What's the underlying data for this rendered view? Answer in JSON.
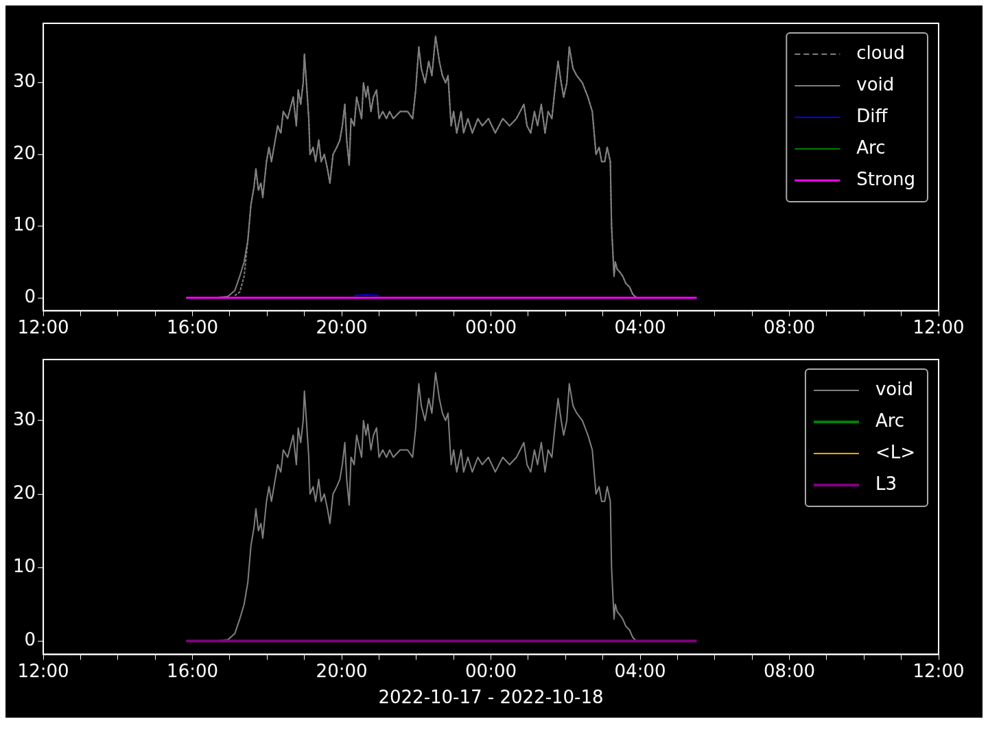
{
  "chart_data": [
    {
      "type": "line",
      "legend": "top right",
      "ylim": [
        -1.8,
        38.3
      ],
      "yticks": [
        0,
        10,
        20,
        30
      ],
      "xlim": [
        "2022-10-17T12:00",
        "2022-10-18T12:00"
      ],
      "xticks": [
        {
          "value": "2022-10-17T12:00",
          "label": "12:00"
        },
        {
          "value": "2022-10-17T13:00",
          "label": null
        },
        {
          "value": "2022-10-17T14:00",
          "label": null
        },
        {
          "value": "2022-10-17T15:00",
          "label": null
        },
        {
          "value": "2022-10-17T16:00",
          "label": "16:00"
        },
        {
          "value": "2022-10-17T17:00",
          "label": null
        },
        {
          "value": "2022-10-17T18:00",
          "label": null
        },
        {
          "value": "2022-10-17T19:00",
          "label": null
        },
        {
          "value": "2022-10-17T20:00",
          "label": "20:00"
        },
        {
          "value": "2022-10-17T21:00",
          "label": null
        },
        {
          "value": "2022-10-17T22:00",
          "label": null
        },
        {
          "value": "2022-10-17T23:00",
          "label": null
        },
        {
          "value": "2022-10-18T00:00",
          "label": "00:00"
        },
        {
          "value": "2022-10-18T01:00",
          "label": null
        },
        {
          "value": "2022-10-18T02:00",
          "label": null
        },
        {
          "value": "2022-10-18T03:00",
          "label": null
        },
        {
          "value": "2022-10-18T04:00",
          "label": "04:00"
        },
        {
          "value": "2022-10-18T05:00",
          "label": null
        },
        {
          "value": "2022-10-18T06:00",
          "label": null
        },
        {
          "value": "2022-10-18T07:00",
          "label": null
        },
        {
          "value": "2022-10-18T08:00",
          "label": "08:00"
        },
        {
          "value": "2022-10-18T09:00",
          "label": null
        },
        {
          "value": "2022-10-18T10:00",
          "label": null
        },
        {
          "value": "2022-10-18T11:00",
          "label": null
        },
        {
          "value": "2022-10-18T12:00",
          "label": "12:00"
        }
      ],
      "x": [
        "2022-10-17T15:50",
        "2022-10-17T16:40",
        "2022-10-17T16:57",
        "2022-10-17T17:08",
        "2022-10-17T17:16",
        "2022-10-17T17:23",
        "2022-10-17T17:29",
        "2022-10-17T17:34",
        "2022-10-17T17:39",
        "2022-10-17T17:42",
        "2022-10-17T17:46",
        "2022-10-17T17:50",
        "2022-10-17T17:53",
        "2022-10-17T17:59",
        "2022-10-17T18:03",
        "2022-10-17T18:07",
        "2022-10-17T18:13",
        "2022-10-17T18:17",
        "2022-10-17T18:22",
        "2022-10-17T18:26",
        "2022-10-17T18:33",
        "2022-10-17T18:42",
        "2022-10-17T18:47",
        "2022-10-17T18:50",
        "2022-10-17T18:54",
        "2022-10-17T18:58",
        "2022-10-17T19:00",
        "2022-10-17T19:04",
        "2022-10-17T19:07",
        "2022-10-17T19:09",
        "2022-10-17T19:14",
        "2022-10-17T19:18",
        "2022-10-17T19:23",
        "2022-10-17T19:27",
        "2022-10-17T19:32",
        "2022-10-17T19:37",
        "2022-10-17T19:41",
        "2022-10-17T19:46",
        "2022-10-17T19:52",
        "2022-10-17T19:57",
        "2022-10-17T20:01",
        "2022-10-17T20:05",
        "2022-10-17T20:08",
        "2022-10-17T20:12",
        "2022-10-17T20:15",
        "2022-10-17T20:20",
        "2022-10-17T20:24",
        "2022-10-17T20:32",
        "2022-10-17T20:35",
        "2022-10-17T20:39",
        "2022-10-17T20:42",
        "2022-10-17T20:47",
        "2022-10-17T20:51",
        "2022-10-17T20:56",
        "2022-10-17T21:00",
        "2022-10-17T21:06",
        "2022-10-17T21:12",
        "2022-10-17T21:17",
        "2022-10-17T21:23",
        "2022-10-17T21:34",
        "2022-10-17T21:46",
        "2022-10-17T21:54",
        "2022-10-17T21:59",
        "2022-10-17T22:04",
        "2022-10-17T22:08",
        "2022-10-17T22:14",
        "2022-10-17T22:20",
        "2022-10-17T22:25",
        "2022-10-17T22:31",
        "2022-10-17T22:37",
        "2022-10-17T22:42",
        "2022-10-17T22:47",
        "2022-10-17T22:51",
        "2022-10-17T22:56",
        "2022-10-17T23:00",
        "2022-10-17T23:05",
        "2022-10-17T23:12",
        "2022-10-17T23:16",
        "2022-10-17T23:23",
        "2022-10-17T23:30",
        "2022-10-17T23:39",
        "2022-10-17T23:46",
        "2022-10-17T23:56",
        "2022-10-18T00:07",
        "2022-10-18T00:19",
        "2022-10-18T00:30",
        "2022-10-18T00:41",
        "2022-10-18T00:53",
        "2022-10-18T00:58",
        "2022-10-18T01:04",
        "2022-10-18T01:10",
        "2022-10-18T01:15",
        "2022-10-18T01:21",
        "2022-10-18T01:27",
        "2022-10-18T01:32",
        "2022-10-18T01:38",
        "2022-10-18T01:44",
        "2022-10-18T01:48",
        "2022-10-18T01:53",
        "2022-10-18T01:57",
        "2022-10-18T02:02",
        "2022-10-18T02:06",
        "2022-10-18T02:12",
        "2022-10-18T02:18",
        "2022-10-18T02:27",
        "2022-10-18T02:36",
        "2022-10-18T02:43",
        "2022-10-18T02:49",
        "2022-10-18T02:54",
        "2022-10-18T02:58",
        "2022-10-18T03:03",
        "2022-10-18T03:07",
        "2022-10-18T03:12",
        "2022-10-18T03:14",
        "2022-10-18T03:18",
        "2022-10-18T03:20",
        "2022-10-18T03:23",
        "2022-10-18T03:28",
        "2022-10-18T03:32",
        "2022-10-18T03:37",
        "2022-10-18T03:43",
        "2022-10-18T03:48",
        "2022-10-18T03:54"
      ],
      "series": [
        {
          "name": "cloud",
          "color": "#808080",
          "line_style": "dashed",
          "values": [
            null,
            null,
            null,
            0.3,
            0.8,
            3,
            8,
            13,
            15.5,
            18,
            15,
            16,
            14,
            19,
            21,
            19,
            22,
            24,
            23,
            26,
            25,
            28,
            24,
            29,
            27,
            30,
            34,
            29,
            25,
            20,
            21,
            19,
            22,
            19,
            20,
            18,
            16,
            20,
            21,
            22,
            24,
            27,
            22,
            18.5,
            25,
            24,
            28,
            25,
            30,
            28,
            29.5,
            26,
            28,
            29,
            25,
            26,
            25,
            26,
            25,
            26,
            26,
            25,
            29,
            35,
            32,
            30,
            33,
            31,
            36.5,
            33,
            31,
            30,
            31,
            24,
            26,
            23,
            26,
            23,
            25,
            23,
            25,
            24,
            25,
            23,
            25,
            24,
            25,
            27,
            24,
            23,
            26,
            24,
            27,
            23,
            26,
            25,
            30,
            33,
            30,
            28,
            30,
            35,
            32,
            31,
            30,
            28,
            26,
            20,
            21,
            19,
            19,
            21,
            19,
            10,
            3,
            5,
            4,
            3.5,
            3,
            2,
            1.5,
            0.5,
            0
          ]
        },
        {
          "name": "void",
          "color": "#808080",
          "values": [
            0,
            0,
            0.2,
            1,
            3,
            5,
            8,
            13,
            15.5,
            18,
            15,
            16,
            14,
            19,
            21,
            19,
            22,
            24,
            23,
            26,
            25,
            28,
            24,
            29,
            27,
            30,
            34,
            29,
            25,
            20,
            21,
            19,
            22,
            19,
            20,
            18,
            16,
            20,
            21,
            22,
            24,
            27,
            22,
            18.5,
            25,
            24,
            28,
            25,
            30,
            28,
            29.5,
            26,
            28,
            29,
            25,
            26,
            25,
            26,
            25,
            26,
            26,
            25,
            29,
            35,
            32,
            30,
            33,
            31,
            36.5,
            33,
            31,
            30,
            31,
            24,
            26,
            23,
            26,
            23,
            25,
            23,
            25,
            24,
            25,
            23,
            25,
            24,
            25,
            27,
            24,
            23,
            26,
            24,
            27,
            23,
            26,
            25,
            30,
            33,
            30,
            28,
            30,
            35,
            32,
            31,
            30,
            28,
            26,
            20,
            21,
            19,
            19,
            21,
            19,
            10,
            3,
            5,
            4,
            3.5,
            3,
            2,
            1.5,
            0.5,
            0
          ]
        },
        {
          "name": "Diff",
          "color": "#0000ff",
          "x": [
            "2022-10-17T20:20",
            "2022-10-17T20:40",
            "2022-10-17T21:00"
          ],
          "values": [
            0.3,
            0.4,
            0.3
          ]
        },
        {
          "name": "Arc",
          "color": "#008000",
          "values": [
            null,
            null,
            null,
            null,
            null,
            null,
            null,
            null,
            null,
            null,
            null,
            null,
            null,
            null,
            null,
            null,
            null,
            null,
            null,
            null,
            null,
            null,
            null,
            null,
            null,
            null,
            null,
            null,
            null,
            null,
            null,
            null,
            null,
            null,
            null,
            null,
            null,
            null,
            null,
            null,
            null,
            null,
            null,
            null,
            null,
            null,
            null,
            null,
            null,
            null,
            null,
            null,
            null,
            null,
            null,
            null,
            null,
            null,
            null,
            null,
            null,
            null,
            null,
            null,
            null,
            null,
            null,
            null,
            null,
            null,
            null,
            null,
            null,
            null,
            null,
            null,
            null,
            null,
            null,
            null,
            null,
            null,
            null,
            null,
            null,
            null,
            null,
            null,
            null,
            null,
            null,
            null,
            null,
            null,
            null,
            null,
            null,
            null,
            null,
            null,
            null,
            null,
            null,
            null,
            null,
            null,
            null,
            null,
            null,
            null,
            null,
            null,
            null,
            null,
            null,
            null,
            null,
            null,
            null,
            null,
            null,
            null,
            null
          ]
        },
        {
          "name": "Strong",
          "color": "#ff00ff",
          "x": [
            "2022-10-17T15:50",
            "2022-10-18T05:31"
          ],
          "values": [
            0,
            0
          ]
        }
      ]
    },
    {
      "type": "line",
      "legend": "top right",
      "xlabel": "2022-10-17 - 2022-10-18",
      "ylim": [
        -1.8,
        38.3
      ],
      "yticks": [
        0,
        10,
        20,
        30
      ],
      "xlim": [
        "2022-10-17T12:00",
        "2022-10-18T12:00"
      ],
      "xticks": [
        {
          "value": "2022-10-17T12:00",
          "label": "12:00"
        },
        {
          "value": "2022-10-17T13:00",
          "label": null
        },
        {
          "value": "2022-10-17T14:00",
          "label": null
        },
        {
          "value": "2022-10-17T15:00",
          "label": null
        },
        {
          "value": "2022-10-17T16:00",
          "label": "16:00"
        },
        {
          "value": "2022-10-17T17:00",
          "label": null
        },
        {
          "value": "2022-10-17T18:00",
          "label": null
        },
        {
          "value": "2022-10-17T19:00",
          "label": null
        },
        {
          "value": "2022-10-17T20:00",
          "label": "20:00"
        },
        {
          "value": "2022-10-17T21:00",
          "label": null
        },
        {
          "value": "2022-10-17T22:00",
          "label": null
        },
        {
          "value": "2022-10-17T23:00",
          "label": null
        },
        {
          "value": "2022-10-18T00:00",
          "label": "00:00"
        },
        {
          "value": "2022-10-18T01:00",
          "label": null
        },
        {
          "value": "2022-10-18T02:00",
          "label": null
        },
        {
          "value": "2022-10-18T03:00",
          "label": null
        },
        {
          "value": "2022-10-18T04:00",
          "label": "04:00"
        },
        {
          "value": "2022-10-18T05:00",
          "label": null
        },
        {
          "value": "2022-10-18T06:00",
          "label": null
        },
        {
          "value": "2022-10-18T07:00",
          "label": null
        },
        {
          "value": "2022-10-18T08:00",
          "label": "08:00"
        },
        {
          "value": "2022-10-18T09:00",
          "label": null
        },
        {
          "value": "2022-10-18T10:00",
          "label": null
        },
        {
          "value": "2022-10-18T11:00",
          "label": null
        },
        {
          "value": "2022-10-18T12:00",
          "label": "12:00"
        }
      ],
      "x": [
        "2022-10-17T15:50",
        "2022-10-17T16:40",
        "2022-10-17T16:57",
        "2022-10-17T17:08",
        "2022-10-17T17:16",
        "2022-10-17T17:23",
        "2022-10-17T17:29",
        "2022-10-17T17:34",
        "2022-10-17T17:39",
        "2022-10-17T17:42",
        "2022-10-17T17:46",
        "2022-10-17T17:50",
        "2022-10-17T17:53",
        "2022-10-17T17:59",
        "2022-10-17T18:03",
        "2022-10-17T18:07",
        "2022-10-17T18:13",
        "2022-10-17T18:17",
        "2022-10-17T18:22",
        "2022-10-17T18:26",
        "2022-10-17T18:33",
        "2022-10-17T18:42",
        "2022-10-17T18:47",
        "2022-10-17T18:50",
        "2022-10-17T18:54",
        "2022-10-17T18:58",
        "2022-10-17T19:00",
        "2022-10-17T19:04",
        "2022-10-17T19:07",
        "2022-10-17T19:09",
        "2022-10-17T19:14",
        "2022-10-17T19:18",
        "2022-10-17T19:23",
        "2022-10-17T19:27",
        "2022-10-17T19:32",
        "2022-10-17T19:37",
        "2022-10-17T19:41",
        "2022-10-17T19:46",
        "2022-10-17T19:52",
        "2022-10-17T19:57",
        "2022-10-17T20:01",
        "2022-10-17T20:05",
        "2022-10-17T20:08",
        "2022-10-17T20:12",
        "2022-10-17T20:15",
        "2022-10-17T20:20",
        "2022-10-17T20:24",
        "2022-10-17T20:32",
        "2022-10-17T20:35",
        "2022-10-17T20:39",
        "2022-10-17T20:42",
        "2022-10-17T20:47",
        "2022-10-17T20:51",
        "2022-10-17T20:56",
        "2022-10-17T21:00",
        "2022-10-17T21:06",
        "2022-10-17T21:12",
        "2022-10-17T21:17",
        "2022-10-17T21:23",
        "2022-10-17T21:34",
        "2022-10-17T21:46",
        "2022-10-17T21:54",
        "2022-10-17T21:59",
        "2022-10-17T22:04",
        "2022-10-17T22:08",
        "2022-10-17T22:14",
        "2022-10-17T22:20",
        "2022-10-17T22:25",
        "2022-10-17T22:31",
        "2022-10-17T22:37",
        "2022-10-17T22:42",
        "2022-10-17T22:47",
        "2022-10-17T22:51",
        "2022-10-17T22:56",
        "2022-10-17T23:00",
        "2022-10-17T23:05",
        "2022-10-17T23:12",
        "2022-10-17T23:16",
        "2022-10-17T23:23",
        "2022-10-17T23:30",
        "2022-10-17T23:39",
        "2022-10-17T23:46",
        "2022-10-17T23:56",
        "2022-10-18T00:07",
        "2022-10-18T00:19",
        "2022-10-18T00:30",
        "2022-10-18T00:41",
        "2022-10-18T00:53",
        "2022-10-18T00:58",
        "2022-10-18T01:04",
        "2022-10-18T01:10",
        "2022-10-18T01:15",
        "2022-10-18T01:21",
        "2022-10-18T01:27",
        "2022-10-18T01:32",
        "2022-10-18T01:38",
        "2022-10-18T01:44",
        "2022-10-18T01:48",
        "2022-10-18T01:53",
        "2022-10-18T01:57",
        "2022-10-18T02:02",
        "2022-10-18T02:06",
        "2022-10-18T02:12",
        "2022-10-18T02:18",
        "2022-10-18T02:27",
        "2022-10-18T02:36",
        "2022-10-18T02:43",
        "2022-10-18T02:49",
        "2022-10-18T02:54",
        "2022-10-18T02:58",
        "2022-10-18T03:03",
        "2022-10-18T03:07",
        "2022-10-18T03:12",
        "2022-10-18T03:14",
        "2022-10-18T03:18",
        "2022-10-18T03:20",
        "2022-10-18T03:23",
        "2022-10-18T03:28",
        "2022-10-18T03:32",
        "2022-10-18T03:37",
        "2022-10-18T03:43",
        "2022-10-18T03:48",
        "2022-10-18T03:54"
      ],
      "series": [
        {
          "name": "void",
          "color": "#808080",
          "values": [
            0,
            0,
            0.2,
            1,
            3,
            5,
            8,
            13,
            15.5,
            18,
            15,
            16,
            14,
            19,
            21,
            19,
            22,
            24,
            23,
            26,
            25,
            28,
            24,
            29,
            27,
            30,
            34,
            29,
            25,
            20,
            21,
            19,
            22,
            19,
            20,
            18,
            16,
            20,
            21,
            22,
            24,
            27,
            22,
            18.5,
            25,
            24,
            28,
            25,
            30,
            28,
            29.5,
            26,
            28,
            29,
            25,
            26,
            25,
            26,
            25,
            26,
            26,
            25,
            29,
            35,
            32,
            30,
            33,
            31,
            36.5,
            33,
            31,
            30,
            31,
            24,
            26,
            23,
            26,
            23,
            25,
            23,
            25,
            24,
            25,
            23,
            25,
            24,
            25,
            27,
            24,
            23,
            26,
            24,
            27,
            23,
            26,
            25,
            30,
            33,
            30,
            28,
            30,
            35,
            32,
            31,
            30,
            28,
            26,
            20,
            21,
            19,
            19,
            21,
            19,
            10,
            3,
            5,
            4,
            3.5,
            3,
            2,
            1.5,
            0.5,
            0
          ]
        },
        {
          "name": "Arc",
          "color": "#008000",
          "values": [
            null,
            null,
            null,
            null,
            null,
            null,
            null,
            null,
            null,
            null,
            null,
            null,
            null,
            null,
            null,
            null,
            null,
            null,
            null,
            null,
            null,
            null,
            null,
            null,
            null,
            null,
            null,
            null,
            null,
            null,
            null,
            null,
            null,
            null,
            null,
            null,
            null,
            null,
            null,
            null,
            null,
            null,
            null,
            null,
            null,
            null,
            null,
            null,
            null,
            null,
            null,
            null,
            null,
            null,
            null,
            null,
            null,
            null,
            null,
            null,
            null,
            null,
            null,
            null,
            null,
            null,
            null,
            null,
            null,
            null,
            null,
            null,
            null,
            null,
            null,
            null,
            null,
            null,
            null,
            null,
            null,
            null,
            null,
            null,
            null,
            null,
            null,
            null,
            null,
            null,
            null,
            null,
            null,
            null,
            null,
            null,
            null,
            null,
            null,
            null,
            null,
            null,
            null,
            null,
            null,
            null,
            null,
            null,
            null,
            null,
            null,
            null,
            null,
            null,
            null,
            null,
            null,
            null,
            null,
            null,
            null,
            null,
            null
          ]
        },
        {
          "name": "<L>",
          "color": "#ffa500",
          "values": [
            null,
            null,
            null,
            null,
            null,
            null,
            null,
            null,
            null,
            null,
            null,
            null,
            null,
            null,
            null,
            null,
            null,
            null,
            null,
            null,
            null,
            null,
            null,
            null,
            null,
            null,
            null,
            null,
            null,
            null,
            null,
            null,
            null,
            null,
            null,
            null,
            null,
            null,
            null,
            null,
            null,
            null,
            null,
            null,
            null,
            null,
            null,
            null,
            null,
            null,
            null,
            null,
            null,
            null,
            null,
            null,
            null,
            null,
            null,
            null,
            null,
            null,
            null,
            null,
            null,
            null,
            null,
            null,
            null,
            null,
            null,
            null,
            null,
            null,
            null,
            null,
            null,
            null,
            null,
            null,
            null,
            null,
            null,
            null,
            null,
            null,
            null,
            null,
            null,
            null,
            null,
            null,
            null,
            null,
            null,
            null,
            null,
            null,
            null,
            null,
            null,
            null,
            null,
            null,
            null,
            null,
            null,
            null,
            null,
            null,
            null,
            null,
            null,
            null,
            null,
            null,
            null,
            null,
            null,
            null,
            null,
            null,
            null
          ]
        },
        {
          "name": "L3",
          "color": "#800080",
          "x": [
            "2022-10-17T15:50",
            "2022-10-18T05:31"
          ],
          "values": [
            0,
            0
          ]
        }
      ]
    }
  ]
}
